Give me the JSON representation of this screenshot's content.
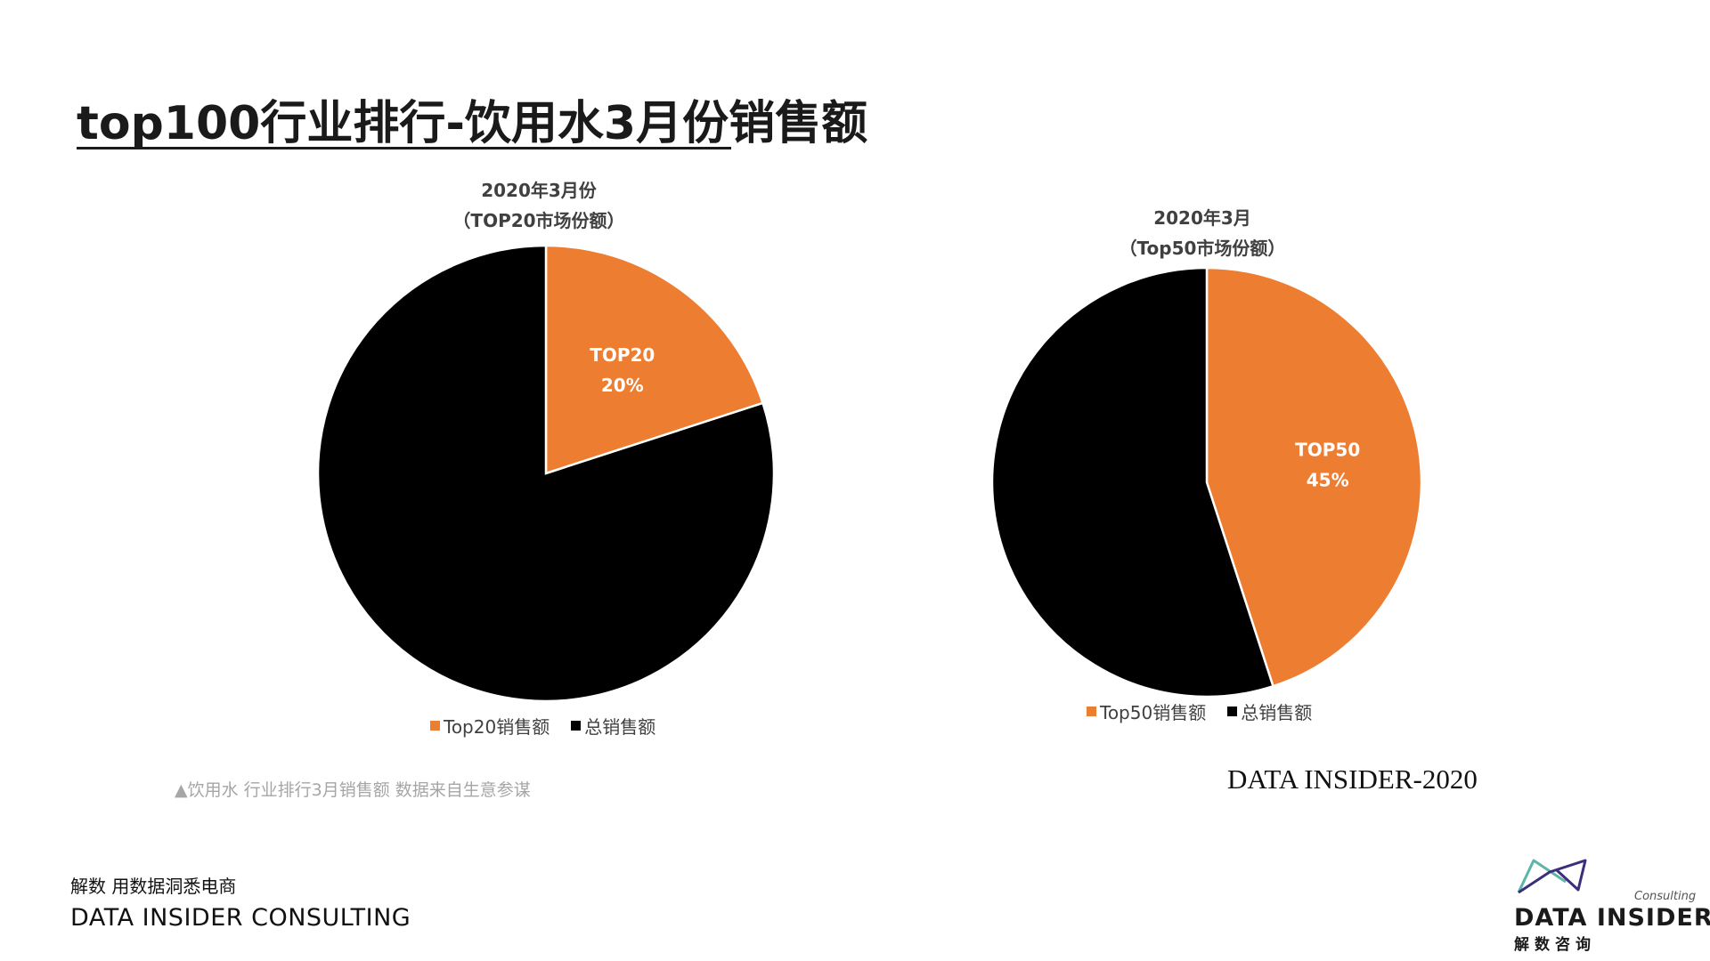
{
  "header": {
    "title": "top100行业排行-饮用水3月份销售额"
  },
  "chart_data": [
    {
      "type": "pie",
      "title_lines": [
        "2020年3月份",
        "（TOP20市场份额）"
      ],
      "slices": [
        {
          "name": "Top20销售额",
          "value": 20,
          "label_name": "TOP20",
          "label_value": "20%",
          "color": "#ED7D31"
        },
        {
          "name": "总销售额",
          "value": 80,
          "color": "#000000"
        }
      ],
      "legend": [
        "Top20销售额",
        "总销售额"
      ],
      "legend_position": "bottom"
    },
    {
      "type": "pie",
      "title_lines": [
        "2020年3月",
        "（Top50市场份额）"
      ],
      "slices": [
        {
          "name": "Top50销售额",
          "value": 45,
          "label_name": "TOP50",
          "label_value": "45%",
          "color": "#ED7D31"
        },
        {
          "name": "总销售额",
          "value": 55,
          "color": "#000000"
        }
      ],
      "legend": [
        "Top50销售额",
        "总销售额"
      ],
      "legend_position": "bottom"
    }
  ],
  "source_note": "▲饮用水 行业排行3月销售额 数据来自生意参谋",
  "watermark": "DATA INSIDER-2020",
  "footer": {
    "slogan": "解数 用数据洞悉电商",
    "company": "DATA INSIDER CONSULTING"
  },
  "logo": {
    "consulting": "Consulting",
    "name": "DATA INSIDER",
    "cn": "解数咨询",
    "colors": {
      "teal": "#5BB5A8",
      "purple": "#3D2E7C"
    }
  }
}
